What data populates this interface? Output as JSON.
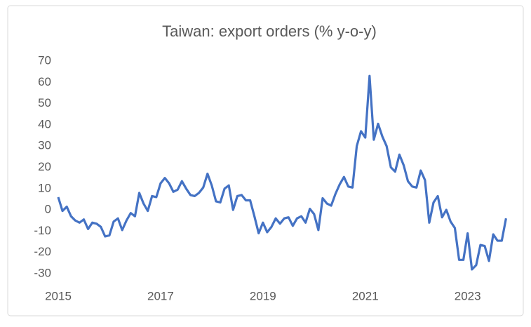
{
  "chart_data": {
    "type": "line",
    "title": "Taiwan: export orders (% y-o-y)",
    "categories": [
      "2015",
      null,
      null,
      null,
      null,
      null,
      null,
      null,
      null,
      null,
      null,
      null,
      null,
      null,
      null,
      null,
      null,
      null,
      null,
      null,
      null,
      null,
      null,
      null,
      "2017",
      null,
      null,
      null,
      null,
      null,
      null,
      null,
      null,
      null,
      null,
      null,
      null,
      null,
      null,
      null,
      null,
      null,
      null,
      null,
      null,
      null,
      null,
      null,
      "2019",
      null,
      null,
      null,
      null,
      null,
      null,
      null,
      null,
      null,
      null,
      null,
      null,
      null,
      null,
      null,
      null,
      null,
      null,
      null,
      null,
      null,
      null,
      null,
      "2021",
      null,
      null,
      null,
      null,
      null,
      null,
      null,
      null,
      null,
      null,
      null,
      null,
      null,
      null,
      null,
      null,
      null,
      null,
      null,
      null,
      null,
      null,
      null,
      "2023",
      null,
      null,
      null,
      null,
      null,
      null,
      null,
      null,
      null
    ],
    "series": [
      {
        "color": "#4472c4",
        "values": [
          6,
          -0.5,
          1.5,
          -3,
          -5,
          -6,
          -4.5,
          -9,
          -6,
          -6.5,
          -8,
          -12.5,
          -12,
          -5.5,
          -4,
          -9.5,
          -5,
          -1.5,
          -3,
          8,
          3,
          -0.5,
          6.5,
          6,
          12.5,
          15,
          12.5,
          8.5,
          9.5,
          13.5,
          10,
          7,
          6.5,
          8,
          10.5,
          17,
          11.5,
          4,
          3.5,
          10,
          11.5,
          0,
          6.5,
          7,
          4.5,
          4.5,
          -3,
          -11,
          -6,
          -10.5,
          -8,
          -4,
          -6.5,
          -4,
          -3.5,
          -7.5,
          -4,
          -3,
          -6,
          0.5,
          -2,
          -9.5,
          5.5,
          3,
          2,
          7.5,
          12,
          15.5,
          11,
          10.5,
          30,
          37,
          34,
          63,
          33,
          40.5,
          34.5,
          30,
          20,
          18,
          26,
          21,
          13.5,
          11,
          10.5,
          18.5,
          14,
          -6,
          3.5,
          6.5,
          -3.5,
          0,
          -5.5,
          -8.5,
          -23.5,
          -23.5,
          -11,
          -28,
          -26,
          -16.5,
          -17,
          -24,
          -11.5,
          -14.5,
          -14.5,
          -4
        ]
      }
    ],
    "ylim": [
      -30,
      70
    ],
    "yticks": [
      70,
      60,
      50,
      40,
      30,
      20,
      10,
      0,
      -10,
      -20,
      -30
    ],
    "grid": false
  }
}
